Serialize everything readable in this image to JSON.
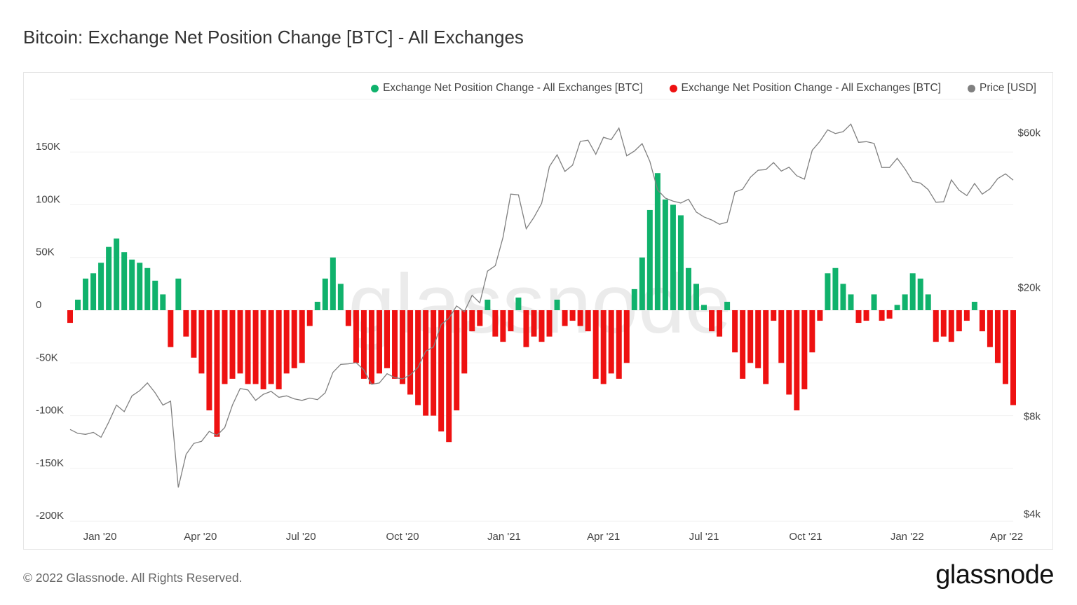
{
  "title": "Bitcoin: Exchange Net Position Change [BTC] - All Exchanges",
  "footer": "© 2022 Glassnode. All Rights Reserved.",
  "logo": "glassnode",
  "watermark": "glassnode",
  "legend": [
    {
      "label": "Exchange Net Position Change - All Exchanges [BTC]",
      "color": "#10b26c"
    },
    {
      "label": "Exchange Net Position Change - All Exchanges [BTC]",
      "color": "#ee1111"
    },
    {
      "label": "Price [USD]",
      "color": "#808080"
    }
  ],
  "chart_data": {
    "type": "bar+line",
    "title": "Bitcoin: Exchange Net Position Change [BTC] - All Exchanges",
    "x_range": [
      "2019-12-05",
      "2022-04-07"
    ],
    "sampling": "weekly",
    "x_ticks": [
      {
        "label": "Jan '20",
        "date": "2020-01-01"
      },
      {
        "label": "Apr '20",
        "date": "2020-04-01"
      },
      {
        "label": "Jul '20",
        "date": "2020-07-01"
      },
      {
        "label": "Oct '20",
        "date": "2020-10-01"
      },
      {
        "label": "Jan '21",
        "date": "2021-01-01"
      },
      {
        "label": "Apr '21",
        "date": "2021-04-01"
      },
      {
        "label": "Jul '21",
        "date": "2021-07-01"
      },
      {
        "label": "Oct '21",
        "date": "2021-10-01"
      },
      {
        "label": "Jan '22",
        "date": "2022-01-01"
      },
      {
        "label": "Apr '22",
        "date": "2022-04-01"
      }
    ],
    "y_left": {
      "ylim": [
        -200000,
        200000
      ],
      "ticks": [
        {
          "label": "150K",
          "value": 150000
        },
        {
          "label": "100K",
          "value": 100000
        },
        {
          "label": "50K",
          "value": 50000
        },
        {
          "label": "0",
          "value": 0
        },
        {
          "label": "-50K",
          "value": -50000
        },
        {
          "label": "-100K",
          "value": -100000
        },
        {
          "label": "-150K",
          "value": -150000
        },
        {
          "label": "-200K",
          "value": -200000
        }
      ]
    },
    "y_right": {
      "scale": "log",
      "ticks": [
        {
          "label": "$60k",
          "value": 60000
        },
        {
          "label": "$20k",
          "value": 20000
        },
        {
          "label": "$8k",
          "value": 8000
        },
        {
          "label": "$4k",
          "value": 4000
        }
      ]
    },
    "grid": true,
    "legend_position": "top-right",
    "positive_color": "#10b26c",
    "negative_color": "#ee1111",
    "price_color": "#808080",
    "net_position_change_btc": [
      -12000,
      10000,
      30000,
      35000,
      45000,
      60000,
      68000,
      55000,
      48000,
      45000,
      40000,
      28000,
      15000,
      -35000,
      30000,
      -25000,
      -45000,
      -60000,
      -95000,
      -120000,
      -70000,
      -65000,
      -60000,
      -70000,
      -70000,
      -75000,
      -70000,
      -75000,
      -60000,
      -55000,
      -50000,
      -15000,
      8000,
      30000,
      50000,
      25000,
      -15000,
      -50000,
      -65000,
      -70000,
      -60000,
      -55000,
      -65000,
      -70000,
      -80000,
      -90000,
      -100000,
      -100000,
      -115000,
      -125000,
      -95000,
      -60000,
      -20000,
      -15000,
      10000,
      -25000,
      -30000,
      -20000,
      12000,
      -35000,
      -25000,
      -30000,
      -25000,
      10000,
      -15000,
      -10000,
      -15000,
      -20000,
      -65000,
      -70000,
      -60000,
      -65000,
      -50000,
      20000,
      50000,
      95000,
      130000,
      105000,
      100000,
      90000,
      40000,
      25000,
      5000,
      -20000,
      -25000,
      8000,
      -40000,
      -65000,
      -50000,
      -55000,
      -70000,
      -10000,
      -50000,
      -80000,
      -95000,
      -75000,
      -40000,
      -10000,
      35000,
      40000,
      25000,
      15000,
      -12000,
      -10000,
      15000,
      -10000,
      -8000,
      5000,
      15000,
      35000,
      30000,
      15000,
      -30000,
      -25000,
      -30000,
      -20000,
      -10000,
      8000,
      -20000,
      -35000,
      -50000,
      -70000,
      -90000
    ],
    "price_usd": [
      7400,
      7200,
      7150,
      7250,
      7000,
      7800,
      8800,
      8400,
      9400,
      9750,
      10300,
      9600,
      8800,
      9050,
      4900,
      6200,
      6700,
      6800,
      7300,
      7100,
      7500,
      8800,
      9900,
      9800,
      9100,
      9500,
      9700,
      9300,
      9400,
      9200,
      9100,
      9250,
      9150,
      9600,
      11100,
      11750,
      11800,
      11900,
      11300,
      10200,
      10300,
      11000,
      10700,
      10600,
      10900,
      11500,
      12900,
      13300,
      15600,
      16300,
      17800,
      17100,
      19200,
      18200,
      22800,
      23700,
      29000,
      39400,
      39200,
      30800,
      33400,
      36900,
      47900,
      52100,
      46300,
      48400,
      57300,
      57800,
      52300,
      59000,
      58000,
      63000,
      51700,
      53500,
      56400,
      49700,
      40600,
      38300,
      37500,
      37000,
      38000,
      34700,
      33500,
      32800,
      31800,
      32300,
      40000,
      40800,
      44400,
      46700,
      46900,
      49300,
      46400,
      47700,
      44900,
      43800,
      53800,
      57300,
      62200,
      60600,
      61400,
      64800,
      56900,
      57200,
      56500,
      47600,
      47600,
      50800,
      47100,
      43100,
      42600,
      40700,
      37200,
      37300,
      43600,
      40500,
      39000,
      42500,
      39400,
      40900,
      44000,
      45500,
      43500
    ]
  }
}
